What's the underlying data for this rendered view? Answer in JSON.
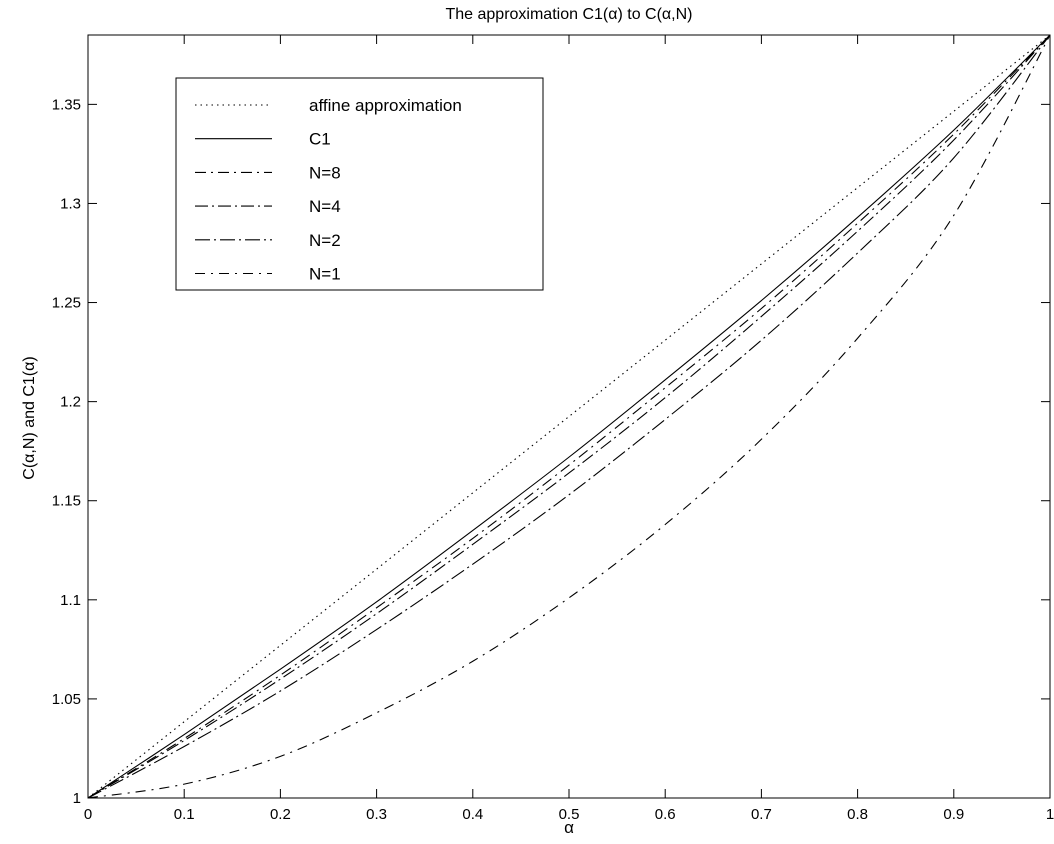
{
  "chart_data": {
    "type": "line",
    "title": "The approximation C1(α) to C(α,N)",
    "xlabel": "α",
    "ylabel": "C(α,N) and C1(α)",
    "xlim": [
      0,
      1
    ],
    "ylim": [
      1,
      1.385
    ],
    "xticks": [
      "0",
      "0.1",
      "0.2",
      "0.3",
      "0.4",
      "0.5",
      "0.6",
      "0.7",
      "0.8",
      "0.9",
      "1"
    ],
    "yticks": [
      "1",
      "1.05",
      "1.1",
      "1.15",
      "1.2",
      "1.25",
      "1.3",
      "1.35"
    ],
    "grid": false,
    "legend_position": "top-left",
    "x": [
      0,
      0.1,
      0.2,
      0.3,
      0.4,
      0.5,
      0.6,
      0.7,
      0.8,
      0.9,
      1
    ],
    "series": [
      {
        "name": "affine approximation",
        "dash": "dotted",
        "values": [
          1,
          1.0385,
          1.077,
          1.1155,
          1.154,
          1.1925,
          1.231,
          1.2695,
          1.308,
          1.3465,
          1.385
        ]
      },
      {
        "name": "C1",
        "dash": "solid",
        "values": [
          1,
          1.032,
          1.065,
          1.099,
          1.135,
          1.172,
          1.211,
          1.251,
          1.293,
          1.337,
          1.385
        ]
      },
      {
        "name": "N=8",
        "dash": "dashdot-1",
        "values": [
          1,
          1.03,
          1.062,
          1.096,
          1.131,
          1.168,
          1.207,
          1.247,
          1.29,
          1.335,
          1.385
        ]
      },
      {
        "name": "N=4",
        "dash": "dashdot-2",
        "values": [
          1,
          1.029,
          1.06,
          1.093,
          1.128,
          1.164,
          1.202,
          1.243,
          1.286,
          1.332,
          1.385
        ]
      },
      {
        "name": "N=2",
        "dash": "dashdot-3",
        "values": [
          1,
          1.026,
          1.054,
          1.085,
          1.118,
          1.153,
          1.191,
          1.231,
          1.275,
          1.323,
          1.385
        ]
      },
      {
        "name": "N=1",
        "dash": "dashdot-4",
        "values": [
          1,
          1.007,
          1.021,
          1.043,
          1.069,
          1.101,
          1.138,
          1.181,
          1.232,
          1.294,
          1.385
        ]
      }
    ]
  }
}
